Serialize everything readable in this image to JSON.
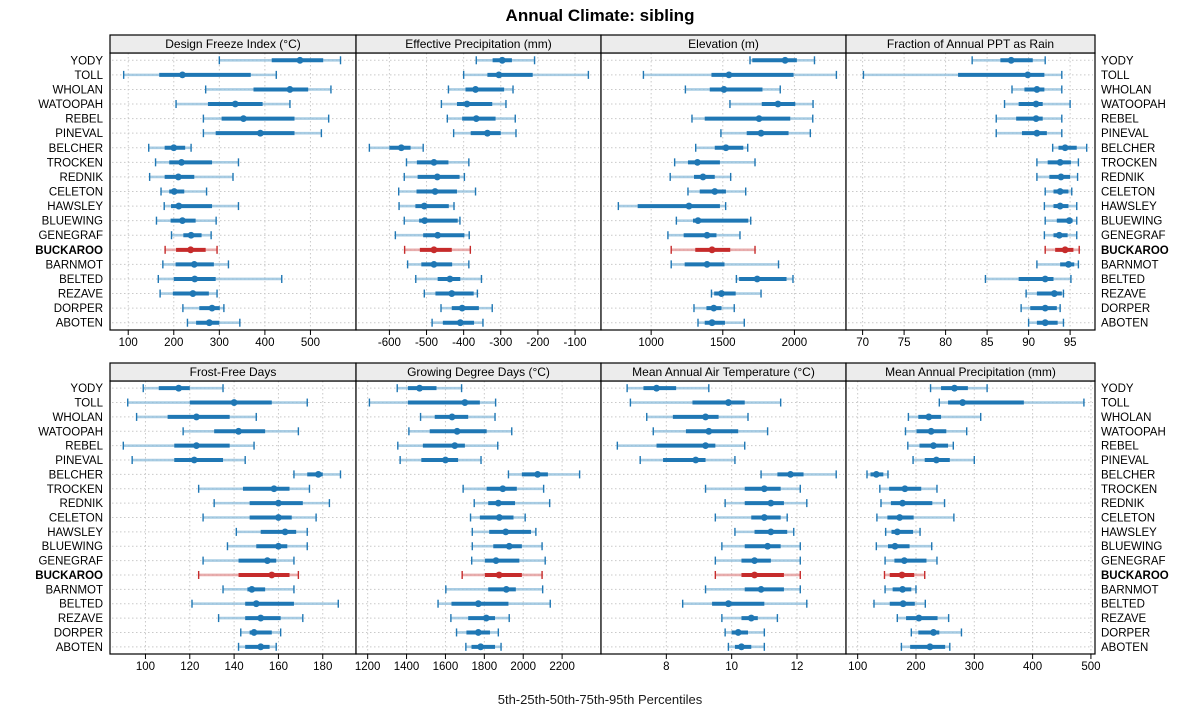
{
  "title": "Annual Climate: sibling",
  "footer": "5th-25th-50th-75th-95th Percentiles",
  "highlight_site": "BUCKAROO",
  "colors": {
    "blue": "#1f77b4",
    "light_blue": "#94c1dd",
    "red": "#c62b2b",
    "light_red": "#e49a9a",
    "strip_bg": "#ececec",
    "panel_border": "#000000",
    "grid": "#c9c9c9",
    "text": "#000000"
  },
  "chart_data": {
    "type": "dotplot-percentiles",
    "layout": "2 rows x 4 cols",
    "percentiles_shown": [
      5,
      25,
      50,
      75,
      95
    ],
    "sites": [
      "YODY",
      "TOLL",
      "WHOLAN",
      "WATOOPAH",
      "REBEL",
      "PINEVAL",
      "BELCHER",
      "TROCKEN",
      "REDNIK",
      "CELETON",
      "HAWSLEY",
      "BLUEWING",
      "GENEGRAF",
      "BUCKAROO",
      "BARNMOT",
      "BELTED",
      "REZAVE",
      "DORPER",
      "ABOTEN"
    ],
    "panels": [
      {
        "label": "Design Freeze Index (°C)",
        "ticks": [
          100,
          200,
          300,
          400,
          500
        ],
        "xlim": [
          60,
          600
        ],
        "values": [
          [
            300,
            415,
            477,
            528,
            566
          ],
          [
            90,
            168,
            219,
            369,
            425
          ],
          [
            270,
            375,
            455,
            495,
            545
          ],
          [
            205,
            275,
            335,
            395,
            455
          ],
          [
            265,
            305,
            353,
            465,
            540
          ],
          [
            265,
            292,
            390,
            465,
            524
          ],
          [
            145,
            180,
            200,
            225,
            238
          ],
          [
            160,
            190,
            217,
            284,
            342
          ],
          [
            147,
            180,
            210,
            245,
            330
          ],
          [
            172,
            190,
            201,
            223,
            272
          ],
          [
            179,
            194,
            211,
            284,
            342
          ],
          [
            162,
            193,
            219,
            248,
            293
          ],
          [
            195,
            221,
            238,
            261,
            282
          ],
          [
            181,
            205,
            237,
            270,
            295
          ],
          [
            176,
            204,
            245,
            288,
            320
          ],
          [
            166,
            200,
            246,
            292,
            437
          ],
          [
            170,
            198,
            242,
            277,
            295
          ],
          [
            220,
            256,
            284,
            301,
            310
          ],
          [
            230,
            249,
            278,
            300,
            345
          ]
        ]
      },
      {
        "label": "Effective Precipitation (mm)",
        "ticks": [
          -600,
          -500,
          -400,
          -300,
          -200,
          -100
        ],
        "xlim": [
          -690,
          -30
        ],
        "values": [
          [
            -366,
            -322,
            -296,
            -270,
            -209
          ],
          [
            -400,
            -336,
            -305,
            -214,
            -64
          ],
          [
            -441,
            -395,
            -368,
            -291,
            -267
          ],
          [
            -460,
            -418,
            -391,
            -323,
            -286
          ],
          [
            -444,
            -404,
            -366,
            -314,
            -261
          ],
          [
            -427,
            -381,
            -336,
            -300,
            -259
          ],
          [
            -654,
            -600,
            -568,
            -543,
            -509
          ],
          [
            -554,
            -526,
            -480,
            -441,
            -386
          ],
          [
            -560,
            -524,
            -471,
            -411,
            -398
          ],
          [
            -575,
            -527,
            -477,
            -418,
            -368
          ],
          [
            -574,
            -530,
            -506,
            -440,
            -426
          ],
          [
            -560,
            -520,
            -505,
            -416,
            -410
          ],
          [
            -584,
            -509,
            -470,
            -398,
            -385
          ],
          [
            -559,
            -518,
            -480,
            -432,
            -382
          ],
          [
            -551,
            -514,
            -480,
            -431,
            -386
          ],
          [
            -529,
            -470,
            -437,
            -409,
            -352
          ],
          [
            -506,
            -476,
            -432,
            -373,
            -363
          ],
          [
            -461,
            -432,
            -404,
            -359,
            -323
          ],
          [
            -485,
            -456,
            -409,
            -372,
            -348
          ]
        ]
      },
      {
        "label": "Elevation (m)",
        "ticks": [
          1000,
          1500,
          2000
        ],
        "xlim": [
          650,
          2360
        ],
        "values": [
          [
            1690,
            1706,
            1935,
            2017,
            2140
          ],
          [
            946,
            1421,
            1543,
            1994,
            2293
          ],
          [
            1239,
            1409,
            1508,
            1777,
            1901
          ],
          [
            1550,
            1772,
            1885,
            2006,
            2130
          ],
          [
            1285,
            1374,
            1753,
            1971,
            2128
          ],
          [
            1487,
            1667,
            1767,
            1959,
            2111
          ],
          [
            1311,
            1444,
            1522,
            1643,
            1674
          ],
          [
            1164,
            1257,
            1323,
            1480,
            1725
          ],
          [
            1133,
            1299,
            1362,
            1444,
            1555
          ],
          [
            1257,
            1339,
            1444,
            1522,
            1660
          ],
          [
            771,
            906,
            1264,
            1480,
            1520
          ],
          [
            1176,
            1292,
            1327,
            1678,
            1695
          ],
          [
            1117,
            1227,
            1390,
            1456,
            1620
          ],
          [
            1140,
            1308,
            1425,
            1552,
            1725
          ],
          [
            1140,
            1234,
            1390,
            1512,
            1889
          ],
          [
            1595,
            1614,
            1740,
            1945,
            1990
          ],
          [
            1421,
            1440,
            1491,
            1590,
            1767
          ],
          [
            1299,
            1386,
            1437,
            1491,
            1580
          ],
          [
            1327,
            1374,
            1425,
            1515,
            1650
          ]
        ]
      },
      {
        "label": "Fraction of Annual PPT as Rain",
        "ticks": [
          70,
          75,
          80,
          85,
          90,
          95
        ],
        "xlim": [
          68,
          98
        ],
        "values": [
          [
            83.2,
            86.6,
            87.9,
            90.5,
            92.0
          ],
          [
            70.1,
            81.5,
            89.9,
            91.9,
            94.0
          ],
          [
            88.0,
            89.5,
            91.0,
            91.9,
            94.0
          ],
          [
            87.1,
            88.8,
            90.9,
            91.7,
            95.0
          ],
          [
            86.1,
            88.5,
            90.9,
            91.7,
            94.0
          ],
          [
            86.1,
            89.2,
            91.0,
            92.2,
            94.0
          ],
          [
            92.9,
            93.6,
            94.4,
            95.8,
            97.0
          ],
          [
            91.0,
            92.3,
            93.8,
            95.1,
            96.0
          ],
          [
            91.0,
            92.5,
            93.9,
            95.0,
            95.9
          ],
          [
            92.0,
            93.0,
            93.8,
            94.8,
            95.2
          ],
          [
            91.9,
            93.0,
            93.8,
            94.8,
            95.8
          ],
          [
            92.0,
            93.4,
            94.9,
            95.3,
            95.8
          ],
          [
            91.9,
            93.0,
            93.7,
            94.7,
            95.8
          ],
          [
            92.0,
            93.2,
            94.4,
            95.4,
            96.1
          ],
          [
            91.0,
            93.8,
            94.8,
            95.5,
            96.0
          ],
          [
            84.8,
            88.8,
            92.0,
            93.0,
            95.1
          ],
          [
            89.7,
            91.0,
            93.1,
            94.0,
            94.2
          ],
          [
            89.1,
            90.2,
            92.0,
            93.4,
            93.8
          ],
          [
            90.0,
            91.0,
            92.0,
            93.5,
            94.2
          ]
        ]
      },
      {
        "label": "Frost-Free Days",
        "ticks": [
          100,
          120,
          140,
          160,
          180
        ],
        "xlim": [
          84,
          195
        ],
        "values": [
          [
            99,
            106,
            115,
            120,
            135
          ],
          [
            92,
            120,
            140,
            157,
            173
          ],
          [
            96,
            110,
            123,
            138,
            150
          ],
          [
            117,
            131,
            142,
            154,
            169
          ],
          [
            90,
            113,
            123,
            138,
            149
          ],
          [
            94,
            113,
            122,
            135,
            145
          ],
          [
            167,
            173,
            178,
            180,
            188
          ],
          [
            124,
            144,
            158,
            165,
            174
          ],
          [
            131,
            147,
            160,
            171,
            183
          ],
          [
            126,
            147,
            160,
            166,
            177
          ],
          [
            141,
            152,
            163,
            168,
            173
          ],
          [
            137,
            150,
            160,
            164,
            173
          ],
          [
            126,
            142,
            155,
            159,
            167
          ],
          [
            124,
            142,
            157,
            165,
            169
          ],
          [
            135,
            146,
            148,
            154,
            167
          ],
          [
            121,
            145,
            150,
            167,
            187
          ],
          [
            133,
            145,
            152,
            161,
            171
          ],
          [
            143,
            147,
            149,
            157,
            161
          ],
          [
            142,
            145,
            152,
            156,
            159
          ]
        ]
      },
      {
        "label": "Growing Degree Days (°C)",
        "ticks": [
          1200,
          1400,
          1600,
          1800,
          2000,
          2200
        ],
        "xlim": [
          1140,
          2400
        ],
        "values": [
          [
            1352,
            1407,
            1467,
            1554,
            1683
          ],
          [
            1209,
            1407,
            1700,
            1777,
            1858
          ],
          [
            1472,
            1545,
            1634,
            1717,
            1855
          ],
          [
            1412,
            1519,
            1660,
            1812,
            1941
          ],
          [
            1355,
            1484,
            1648,
            1700,
            1869
          ],
          [
            1367,
            1476,
            1600,
            1665,
            1783
          ],
          [
            1924,
            1993,
            2074,
            2127,
            2290
          ],
          [
            1691,
            1812,
            1895,
            1967,
            2105
          ],
          [
            1748,
            1820,
            1872,
            1958,
            2136
          ],
          [
            1729,
            1777,
            1877,
            1950,
            2010
          ],
          [
            1738,
            1825,
            1910,
            2040,
            2065
          ],
          [
            1738,
            1846,
            1928,
            1993,
            2097
          ],
          [
            1735,
            1803,
            1860,
            1980,
            2113
          ],
          [
            1686,
            1803,
            1876,
            1993,
            2097
          ],
          [
            1602,
            1820,
            1913,
            1962,
            2100
          ],
          [
            1562,
            1631,
            1769,
            1924,
            2139
          ],
          [
            1628,
            1717,
            1810,
            1855,
            1928
          ],
          [
            1657,
            1708,
            1769,
            1829,
            1872
          ],
          [
            1705,
            1734,
            1781,
            1855,
            1886
          ]
        ]
      },
      {
        "label": "Mean Annual Air Temperature (°C)",
        "ticks": [
          8,
          10,
          12
        ],
        "xlim": [
          6.0,
          13.5
        ],
        "values": [
          [
            6.8,
            7.3,
            7.7,
            8.3,
            9.3
          ],
          [
            6.9,
            8.8,
            9.9,
            10.4,
            11.5
          ],
          [
            7.4,
            8.2,
            9.2,
            9.6,
            10.5
          ],
          [
            7.6,
            8.6,
            9.3,
            10.2,
            11.1
          ],
          [
            6.5,
            7.7,
            9.2,
            9.5,
            10.4
          ],
          [
            7.2,
            7.9,
            8.9,
            9.2,
            10.1
          ],
          [
            10.9,
            11.4,
            11.8,
            12.2,
            13.2
          ],
          [
            9.2,
            10.4,
            11.0,
            11.5,
            12.1
          ],
          [
            9.8,
            10.4,
            11.2,
            11.6,
            12.3
          ],
          [
            9.5,
            10.6,
            11.0,
            11.5,
            11.7
          ],
          [
            10.1,
            10.7,
            11.2,
            11.7,
            11.9
          ],
          [
            9.7,
            10.4,
            11.1,
            11.5,
            12.1
          ],
          [
            9.5,
            10.3,
            10.7,
            11.2,
            12.1
          ],
          [
            9.5,
            10.3,
            10.7,
            11.6,
            12.1
          ],
          [
            9.2,
            10.4,
            10.9,
            11.6,
            12.1
          ],
          [
            8.5,
            9.4,
            9.9,
            11.0,
            12.3
          ],
          [
            9.7,
            10.3,
            10.6,
            10.8,
            11.4
          ],
          [
            9.8,
            10.0,
            10.2,
            10.5,
            11.0
          ],
          [
            9.9,
            10.1,
            10.3,
            10.6,
            11.0
          ]
        ]
      },
      {
        "label": "Mean Annual Precipitation (mm)",
        "ticks": [
          100,
          200,
          300,
          400,
          500
        ],
        "xlim": [
          80,
          507
        ],
        "values": [
          [
            225,
            243,
            266,
            289,
            322
          ],
          [
            240,
            255,
            280,
            385,
            488
          ],
          [
            187,
            204,
            222,
            243,
            311
          ],
          [
            182,
            201,
            226,
            252,
            287
          ],
          [
            186,
            206,
            230,
            255,
            264
          ],
          [
            195,
            215,
            235,
            258,
            300
          ],
          [
            116,
            122,
            132,
            144,
            152
          ],
          [
            138,
            154,
            181,
            209,
            236
          ],
          [
            140,
            157,
            177,
            228,
            249
          ],
          [
            133,
            151,
            172,
            196,
            265
          ],
          [
            148,
            158,
            168,
            195,
            207
          ],
          [
            132,
            152,
            164,
            189,
            227
          ],
          [
            147,
            163,
            180,
            218,
            236
          ],
          [
            146,
            155,
            176,
            197,
            215
          ],
          [
            147,
            160,
            177,
            192,
            200
          ],
          [
            128,
            155,
            178,
            198,
            216
          ],
          [
            168,
            183,
            205,
            237,
            256
          ],
          [
            192,
            204,
            230,
            240,
            278
          ],
          [
            175,
            190,
            224,
            250,
            258
          ]
        ]
      }
    ]
  }
}
